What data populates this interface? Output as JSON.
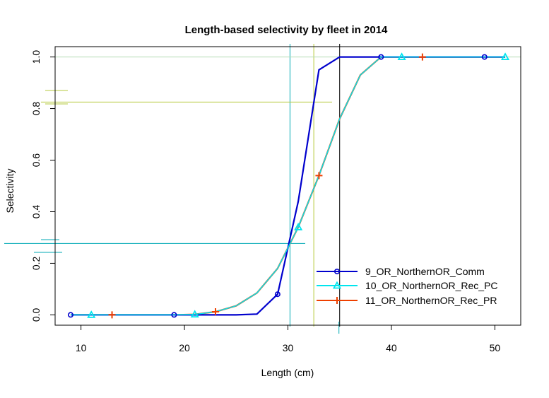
{
  "chart_data": {
    "type": "line",
    "title": "Length-based selectivity by fleet in 2014",
    "xlabel": "Length (cm)",
    "ylabel": "Selectivity",
    "xlim": [
      7.5,
      52.5
    ],
    "ylim": [
      -0.04,
      1.04
    ],
    "xticks": [
      10,
      20,
      30,
      40,
      50
    ],
    "yticks": [
      0.0,
      0.2,
      0.4,
      0.6,
      0.8,
      1.0
    ],
    "xtick_labels": [
      "10",
      "20",
      "30",
      "40",
      "50"
    ],
    "ytick_labels": [
      "0.0",
      "0.2",
      "0.4",
      "0.6",
      "0.8",
      "1.0"
    ],
    "legend_position": "bottom-right",
    "x": [
      9,
      11,
      13,
      15,
      17,
      19,
      21,
      23,
      25,
      27,
      29,
      31,
      33,
      35,
      37,
      39,
      41,
      43,
      45,
      47,
      49,
      51
    ],
    "series": [
      {
        "name": "9_OR_NorthernOR_Comm",
        "color": "#0000cd",
        "marker": "circle",
        "marker_x": [
          9,
          19,
          29,
          39,
          49
        ],
        "values": [
          0,
          0,
          0,
          0,
          0,
          0,
          0,
          0,
          0,
          0.003,
          0.08,
          0.44,
          0.95,
          1.0,
          1.0,
          1.0,
          1.0,
          1.0,
          1.0,
          1.0,
          1.0,
          1.0
        ]
      },
      {
        "name": "10_OR_NorthernOR_Rec_PC",
        "color": "#00e5ee",
        "marker": "triangle",
        "marker_x": [
          11,
          21,
          31,
          41,
          51
        ],
        "values": [
          0,
          0,
          0,
          0,
          0,
          0,
          0.002,
          0.012,
          0.035,
          0.085,
          0.18,
          0.34,
          0.54,
          0.76,
          0.93,
          1.0,
          1.0,
          1.0,
          1.0,
          1.0,
          1.0,
          1.0
        ]
      },
      {
        "name": "11_OR_NorthernOR_Rec_PR",
        "color": "#ee4000",
        "marker": "plus",
        "marker_x": [
          13,
          23,
          33,
          43
        ],
        "values": [
          0,
          0,
          0,
          0,
          0,
          0,
          0.002,
          0.012,
          0.035,
          0.085,
          0.18,
          0.34,
          0.54,
          0.76,
          0.93,
          1.0,
          1.0,
          1.0,
          1.0,
          1.0,
          1.0,
          1.0
        ]
      }
    ],
    "reference_lines": {
      "vertical": [
        {
          "x": 30.2,
          "color": "#00aab4"
        },
        {
          "x": 32.5,
          "color": "#b4c83c"
        },
        {
          "x": 35.0,
          "color": "#000000"
        }
      ],
      "horizontal": [
        {
          "y": 1.0,
          "color": "#b4dcb4"
        },
        {
          "y": 0.825,
          "color": "#b4c83c"
        },
        {
          "y": 0.277,
          "color": "#00aab4"
        }
      ]
    }
  }
}
